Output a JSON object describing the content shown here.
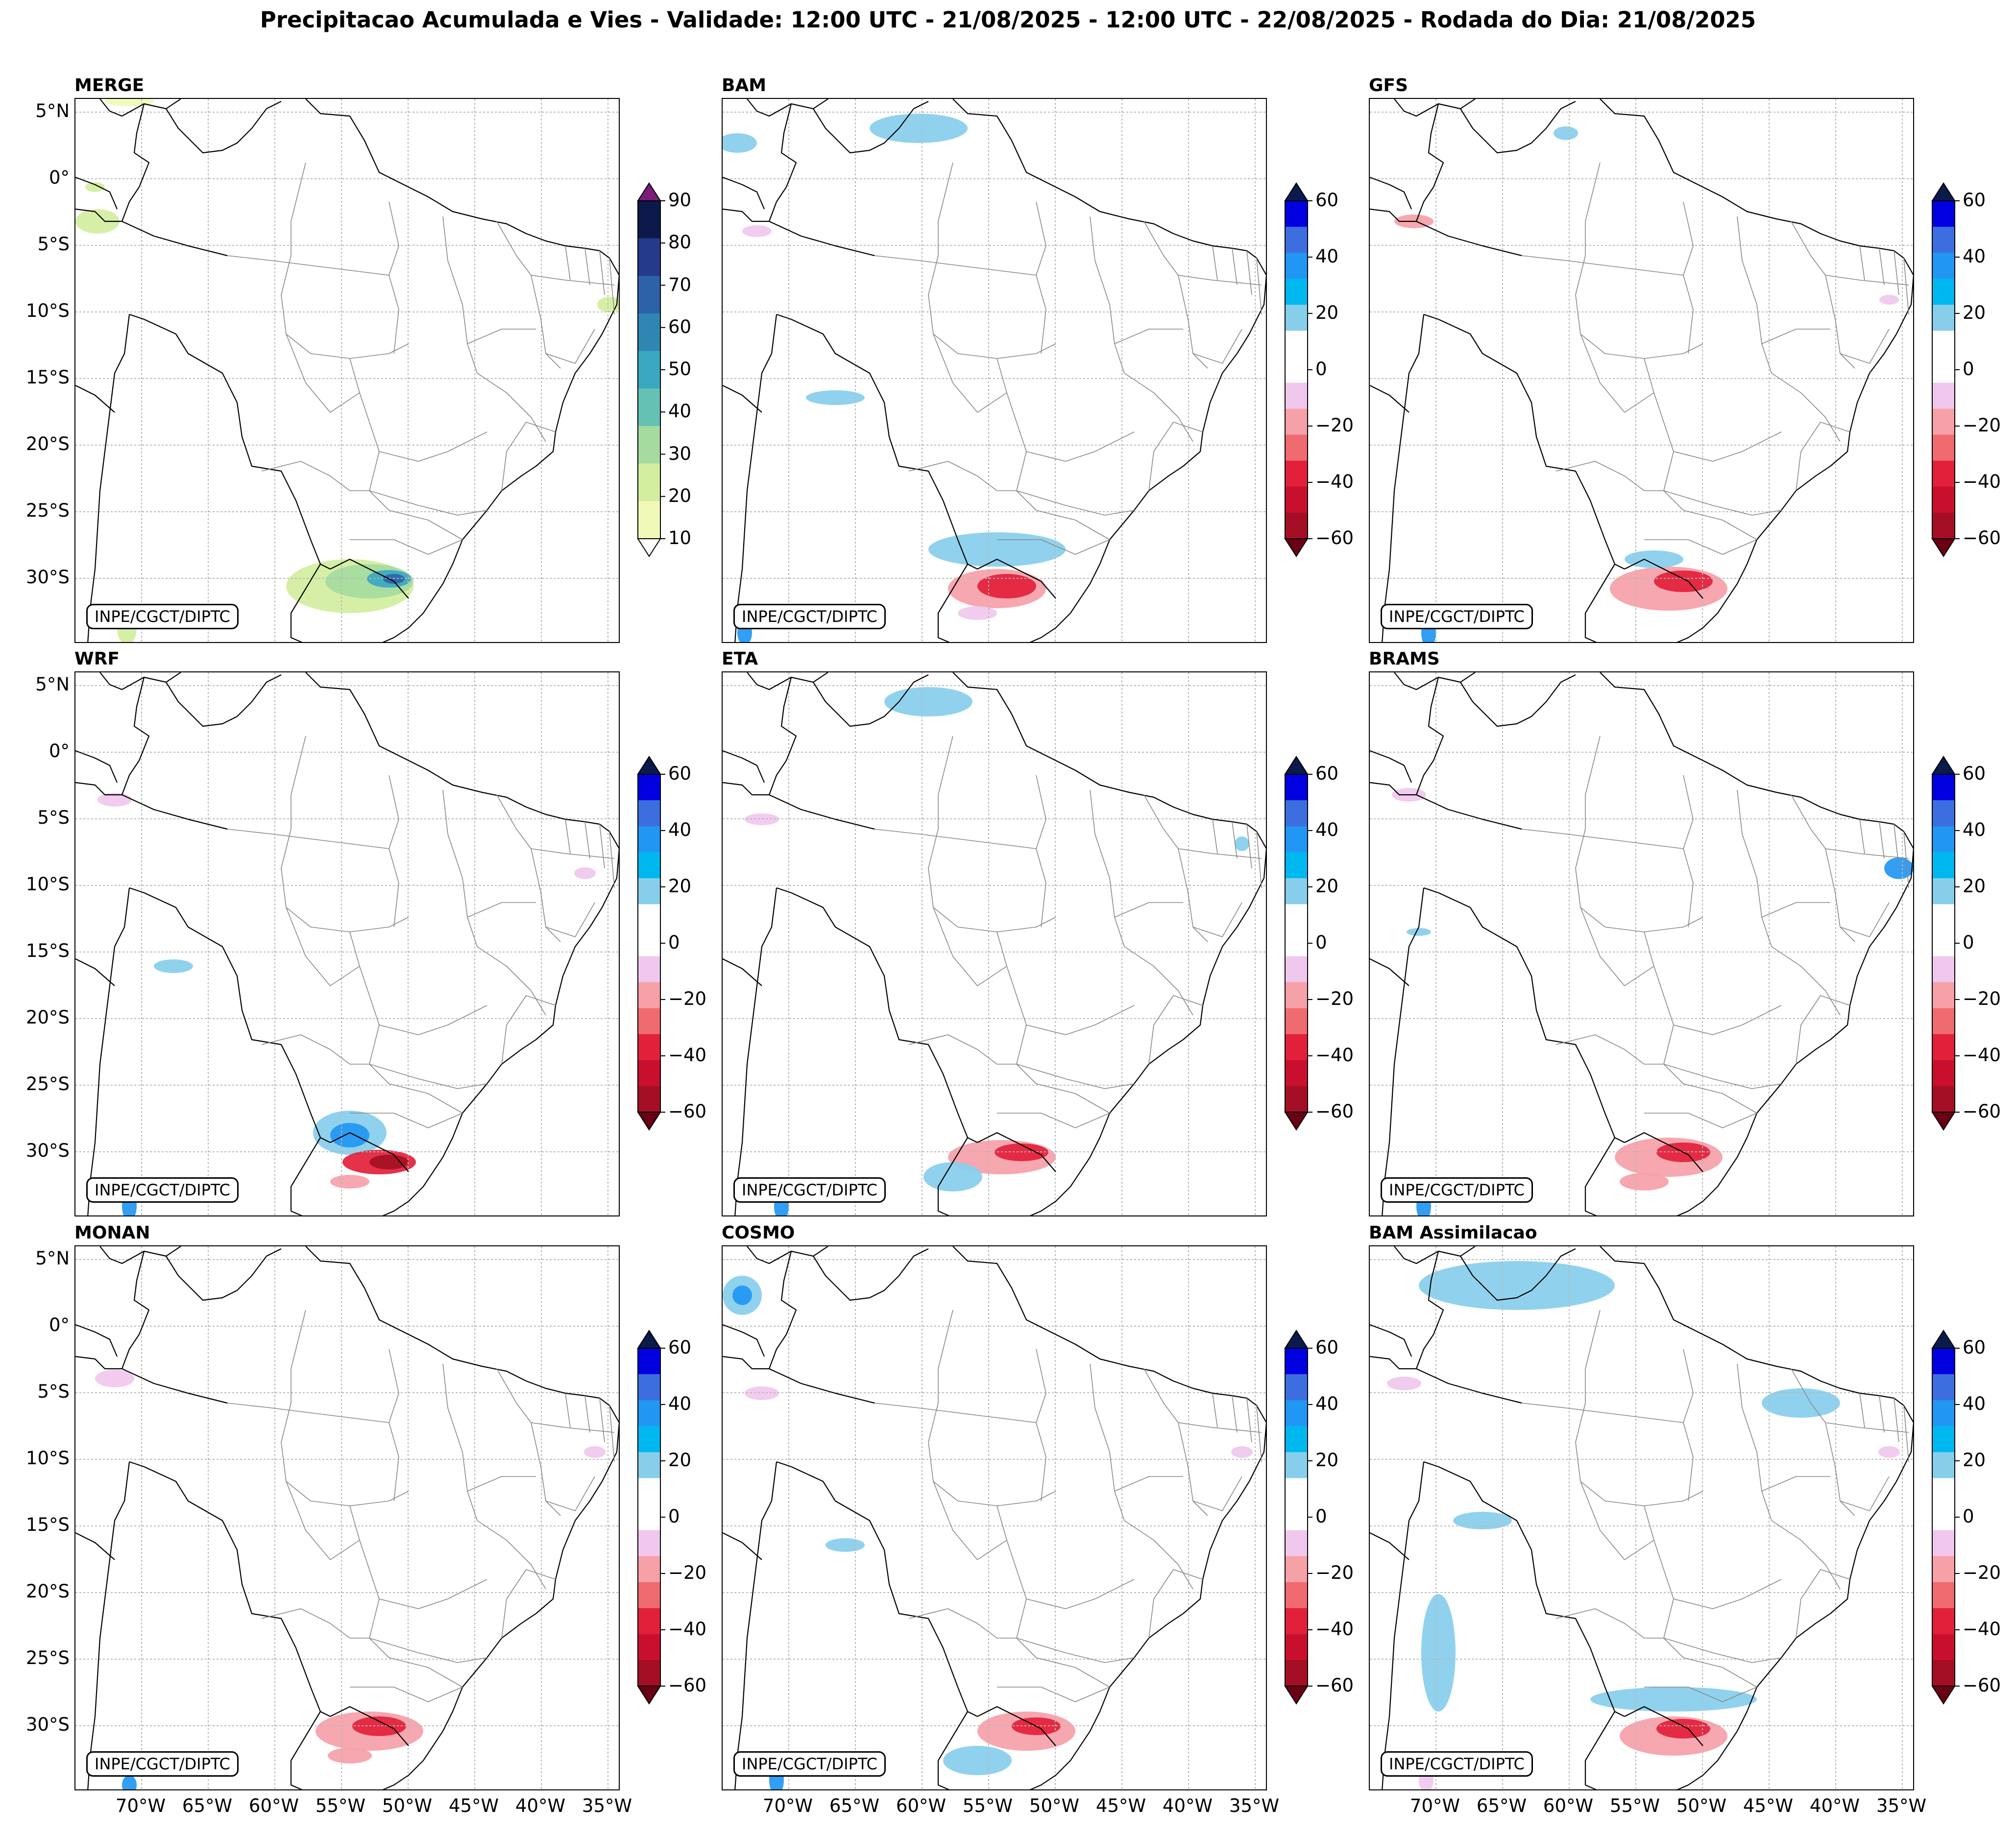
{
  "title": "Precipitacao Acumulada e Vies - Validade: 12:00 UTC - 21/08/2025 - 12:00 UTC - 22/08/2025 - Rodada do Dia: 21/08/2025",
  "credit": "INPE/CGCT/DIPTC",
  "lat_labels": [
    "5°N",
    "0°",
    "5°S",
    "10°S",
    "15°S",
    "20°S",
    "25°S",
    "30°S"
  ],
  "lon_labels": [
    "70°W",
    "65°W",
    "60°W",
    "55°W",
    "50°W",
    "45°W",
    "40°W",
    "35°W"
  ],
  "panels": [
    {
      "name": "MERGE",
      "type": "precip"
    },
    {
      "name": "BAM",
      "type": "bias"
    },
    {
      "name": "GFS",
      "type": "bias"
    },
    {
      "name": "WRF",
      "type": "bias"
    },
    {
      "name": "ETA",
      "type": "bias"
    },
    {
      "name": "BRAMS",
      "type": "bias"
    },
    {
      "name": "MONAN",
      "type": "bias"
    },
    {
      "name": "COSMO",
      "type": "bias"
    },
    {
      "name": "BAM Assimilacao",
      "type": "bias"
    }
  ],
  "precip_scale": {
    "ticks": [
      "90",
      "80",
      "70",
      "60",
      "50",
      "40",
      "30",
      "20",
      "10"
    ],
    "colors": [
      "#0b1a4a",
      "#263a8c",
      "#2d62a8",
      "#2f86b3",
      "#3aa8c1",
      "#66c1b5",
      "#a6dba0",
      "#d3ee9e",
      "#f1f9b8"
    ],
    "over_color": "#7a1c7a",
    "under_color": "#ffffff"
  },
  "bias_scale": {
    "ticks": [
      "60",
      "40",
      "20",
      "0",
      "−20",
      "−40",
      "−60"
    ],
    "colors": [
      "#0000e0",
      "#3d6ee0",
      "#2196f3",
      "#00b8f0",
      "#87ceeb",
      "#ffffff",
      "#ffffff",
      "#f0c8ee",
      "#f6a0a8",
      "#ef6b70",
      "#e3203a",
      "#c8102e",
      "#a50f25"
    ],
    "over_color": "#0a1a4a",
    "under_color": "#6a0014"
  }
}
